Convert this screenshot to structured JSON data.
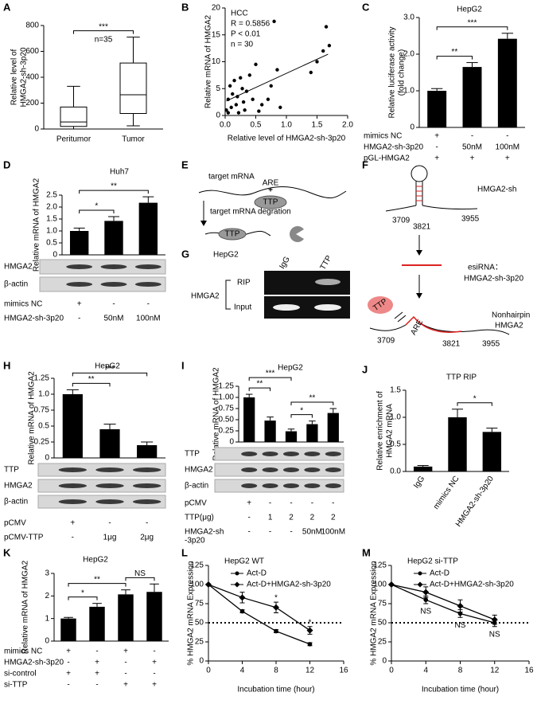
{
  "chart_data": [
    {
      "label": "A",
      "type": "box",
      "ylabel": [
        "Relative level of",
        "HMGA2-sh-3p20"
      ],
      "categories": [
        "Peritumor",
        "Tumor"
      ],
      "whisker_low": [
        0,
        25
      ],
      "q1": [
        20,
        120
      ],
      "median": [
        55,
        265
      ],
      "q3": [
        170,
        510
      ],
      "whisker_high": [
        330,
        710
      ],
      "ylim": [
        0,
        800
      ],
      "yticks": [
        0,
        200,
        400,
        600,
        800
      ],
      "significance": [
        {
          "pair": [
            0,
            1
          ],
          "label": "***"
        }
      ],
      "annotation": "n=35"
    },
    {
      "label": "B",
      "type": "scatter",
      "title": "HCC",
      "annotations": [
        "R = 0.5856",
        "P < 0.01",
        "n = 30"
      ],
      "xlabel": "Relative level of HMGA2-sh-3p20",
      "ylabel": [
        "Relative mRNA of HMGA2"
      ],
      "x": [
        0.02,
        0.05,
        0.05,
        0.08,
        0.1,
        0.12,
        0.15,
        0.18,
        0.2,
        0.22,
        0.25,
        0.28,
        0.3,
        0.32,
        0.35,
        0.4,
        0.45,
        0.5,
        0.55,
        0.6,
        0.7,
        0.75,
        0.8,
        0.85,
        0.9,
        1.4,
        1.5,
        1.6,
        1.65,
        1.7
      ],
      "y": [
        1,
        0.5,
        3,
        5.5,
        1.5,
        4,
        6.5,
        2,
        3.5,
        0.5,
        7,
        5,
        2.5,
        1,
        4.5,
        7.5,
        3,
        9.5,
        0.8,
        2,
        3,
        5.5,
        17.5,
        8.5,
        1.5,
        8,
        10,
        12,
        16.5,
        13
      ],
      "trendline": {
        "x": [
          0.02,
          1.68
        ],
        "y": [
          2.7,
          11.4
        ]
      },
      "xlim": [
        0,
        2
      ],
      "xticks": [
        {
          "value": 0,
          "label": "0.0"
        },
        0.5,
        {
          "value": 1,
          "label": "1.0"
        },
        1.5,
        {
          "value": 2,
          "label": "2.0"
        }
      ],
      "ylim": [
        0,
        20
      ],
      "yticks": [
        0,
        5,
        10,
        15,
        20
      ]
    },
    {
      "label": "C",
      "type": "bar",
      "title": "HepG2",
      "ylabel": [
        "Relative luciferase activity",
        "(fold change)"
      ],
      "values": [
        1,
        1.65,
        2.42
      ],
      "errors": [
        0.06,
        0.12,
        0.15
      ],
      "ylim": [
        0,
        3
      ],
      "yticks": [
        0,
        {
          "value": 1,
          "label": "1.0"
        },
        {
          "value": 2,
          "label": "2.0"
        },
        {
          "value": 3,
          "label": "3.0"
        }
      ],
      "significance": [
        {
          "pair": [
            0,
            1
          ],
          "label": "**"
        },
        {
          "pair": [
            0,
            2
          ],
          "label": "***"
        }
      ],
      "conditions": [
        {
          "label": "mimics NC",
          "cells": [
            "+",
            "-",
            "-"
          ]
        },
        {
          "label": "HMGA2-sh-3p20",
          "cells": [
            "-",
            "50nM",
            "100nM"
          ]
        },
        {
          "label": "pGL-HMGA2",
          "cells": [
            "+",
            "+",
            "+"
          ]
        }
      ]
    },
    {
      "label": "D",
      "type": "bar",
      "title": "Huh7",
      "ylabel": [
        "Relative mRNA of HMGA2"
      ],
      "values": [
        1,
        1.42,
        2.18
      ],
      "errors": [
        0.12,
        0.18,
        0.25
      ],
      "ylim": [
        0,
        2.5
      ],
      "yticks": [
        0,
        0.5,
        {
          "value": 1,
          "label": "1.0"
        },
        1.5,
        {
          "value": 2,
          "label": "2.0"
        },
        2.5
      ],
      "significance": [
        {
          "pair": [
            0,
            1
          ],
          "label": "*"
        },
        {
          "pair": [
            0,
            2
          ],
          "label": "**"
        }
      ],
      "blot": [
        "HMGA2",
        "β-actin"
      ],
      "conditions": [
        {
          "label": "mimics NC",
          "cells": [
            "+",
            "-",
            "-"
          ]
        },
        {
          "label": "HMGA2-sh-3p20",
          "cells": [
            "-",
            "50nM",
            "100nM"
          ]
        }
      ]
    },
    {
      "label": "H",
      "type": "bar",
      "title": "HepG2",
      "ylabel": [
        "Relative mRNA of HMGA2"
      ],
      "values": [
        1,
        0.45,
        0.2
      ],
      "errors": [
        0.07,
        0.08,
        0.05
      ],
      "ylim": [
        0,
        1.25
      ],
      "yticks": [
        0,
        0.25,
        0.5,
        0.75,
        {
          "value": 1,
          "label": "1.0"
        },
        1.25
      ],
      "significance": [
        {
          "pair": [
            0,
            1
          ],
          "label": "**"
        },
        {
          "pair": [
            0,
            2
          ],
          "label": "***"
        }
      ],
      "blot": [
        "TTP",
        "HMGA2",
        "β-actin"
      ],
      "conditions": [
        {
          "label": "pCMV",
          "cells": [
            "+",
            "-",
            "-"
          ]
        },
        {
          "label": "pCMV-TTP",
          "cells": [
            "-",
            "1μg",
            "2μg"
          ]
        }
      ]
    },
    {
      "label": "I",
      "type": "bar",
      "title": "HepG2",
      "ylabel": [
        "Relative mRNA of HMGA2"
      ],
      "values": [
        1,
        0.48,
        0.24,
        0.4,
        0.65
      ],
      "errors": [
        0.07,
        0.08,
        0.05,
        0.07,
        0.1
      ],
      "ylim": [
        0,
        1.25
      ],
      "yticks": [
        0,
        0.25,
        {
          "value": 0.5,
          "label": "0.50"
        },
        0.75,
        {
          "value": 1,
          "label": "1.00"
        },
        1.25
      ],
      "significance": [
        {
          "pair": [
            0,
            1
          ],
          "label": "**"
        },
        {
          "pair": [
            0,
            2
          ],
          "label": "***"
        },
        {
          "pair": [
            2,
            3
          ],
          "label": "*"
        },
        {
          "pair": [
            2,
            4
          ],
          "label": "**"
        }
      ],
      "blot": [
        "TTP",
        "HMGA2",
        "β-actin"
      ],
      "conditions": [
        {
          "label": "pCMV",
          "cells": [
            "+",
            "-",
            "-",
            "-",
            "-"
          ]
        },
        {
          "label": "TTP(μg)",
          "cells": [
            "-",
            "1",
            "2",
            "2",
            "2"
          ]
        },
        {
          "label": [
            "HMGA2-sh",
            "-3p20"
          ],
          "cells": [
            "-",
            "-",
            "-",
            "50nM",
            "100nM"
          ]
        }
      ]
    },
    {
      "label": "J",
      "type": "bar",
      "title": "TTP RIP",
      "ylabel": [
        "Relative enrichment of",
        "HMGA2 mRNA"
      ],
      "categories": [
        "IgG",
        "mimics NC",
        "HMGA2-sh-3p20"
      ],
      "values": [
        0.09,
        1,
        0.73
      ],
      "errors": [
        0.02,
        0.15,
        0.07
      ],
      "ylim": [
        0,
        1.5
      ],
      "yticks": [
        {
          "value": 0,
          "label": "0.0"
        },
        0.5,
        {
          "value": 1,
          "label": "1.0"
        },
        1.5
      ],
      "significance": [
        {
          "pair": [
            1,
            2
          ],
          "label": "*"
        }
      ]
    },
    {
      "label": "K",
      "type": "bar",
      "title": "HepG2",
      "ylabel": [
        "Relative mRNA of HMGA2"
      ],
      "values": [
        1,
        1.52,
        2.07,
        2.18
      ],
      "errors": [
        0.05,
        0.15,
        0.2,
        0.35
      ],
      "ylim": [
        0,
        3
      ],
      "yticks": [
        0,
        1,
        2,
        3
      ],
      "significance": [
        {
          "pair": [
            0,
            1
          ],
          "label": "*"
        },
        {
          "pair": [
            0,
            2
          ],
          "label": "**"
        },
        {
          "pair": [
            2,
            3
          ],
          "label": "NS"
        }
      ],
      "conditions": [
        {
          "label": "mimics NC",
          "cells": [
            "+",
            "-",
            "+",
            "-"
          ]
        },
        {
          "label": "HMGA2-sh-3p20",
          "cells": [
            "-",
            "+",
            "-",
            "+"
          ]
        },
        {
          "label": "si-control",
          "cells": [
            "+",
            "+",
            "-",
            "-"
          ]
        },
        {
          "label": "si-TTP",
          "cells": [
            "-",
            "-",
            "+",
            "+"
          ]
        }
      ]
    },
    {
      "label": "L",
      "type": "line",
      "title": "HepG2  WT",
      "ylabel": [
        "% HMGA2 mRNA Expression"
      ],
      "xlabel": "Incubation time (hour)",
      "x": [
        0,
        4,
        8,
        12
      ],
      "series": [
        {
          "name": "Act-D",
          "marker": "circle",
          "values": [
            100,
            65,
            39,
            22
          ],
          "errors": [
            0,
            2,
            2,
            2
          ]
        },
        {
          "name": "Act-D+HMGA2-sh-3p20",
          "marker": "diamond",
          "values": [
            100,
            83,
            70,
            40
          ],
          "errors": [
            0,
            7,
            7,
            5
          ]
        }
      ],
      "xlim": [
        0,
        16
      ],
      "xticks": [
        0,
        4,
        8,
        12,
        16
      ],
      "ylim": [
        0,
        125
      ],
      "yticks": [
        0,
        25,
        50,
        75,
        100,
        125
      ],
      "reference_line": 50,
      "annotations": [
        {
          "text": "*",
          "x": 8,
          "position": "above"
        },
        {
          "text": "*",
          "x": 12,
          "position": "above"
        }
      ]
    },
    {
      "label": "M",
      "type": "line",
      "title": "HepG2  si-TTP",
      "ylabel": [
        "% HMGA2 mRNA Expression"
      ],
      "xlabel": "Incubation time (hour)",
      "x": [
        0,
        4,
        8,
        12
      ],
      "series": [
        {
          "name": "Act-D",
          "marker": "circle",
          "values": [
            100,
            80,
            62,
            50
          ],
          "errors": [
            0,
            5,
            5,
            5
          ]
        },
        {
          "name": "Act-D+HMGA2-sh-3p20",
          "marker": "diamond",
          "values": [
            100,
            90,
            72,
            54
          ],
          "errors": [
            0,
            7,
            8,
            6
          ]
        }
      ],
      "xlim": [
        0,
        16
      ],
      "xticks": [
        0,
        4,
        8,
        12,
        16
      ],
      "ylim": [
        0,
        125
      ],
      "yticks": [
        0,
        25,
        50,
        75,
        100,
        125
      ],
      "reference_line": 50,
      "annotations": [
        {
          "text": "NS",
          "x": 4,
          "position": "below"
        },
        {
          "text": "NS",
          "x": 8,
          "position": "below"
        },
        {
          "text": "NS",
          "x": 12,
          "position": "below"
        }
      ]
    }
  ],
  "diagrams": {
    "E": {
      "label": "E",
      "target": "target mRNA",
      "are": "ARE",
      "plus": "+",
      "ttp_top": "TTP",
      "step": "target mRNA degration",
      "ttp_bottom": "TTP"
    },
    "G": {
      "label": "G",
      "cell": "HepG2",
      "lanes": [
        "IgG",
        "TTP"
      ],
      "gene": "HMGA2",
      "rows": [
        "RIP",
        "Input"
      ]
    },
    "F": {
      "label": "F",
      "hairpin": "HMGA2-sh",
      "top_positions": [
        "3709",
        "3821",
        "3955"
      ],
      "esirna": [
        "esiRNA：",
        "HMGA2-sh-3p20"
      ],
      "ttp": "TTP",
      "are": "ARE",
      "bottom_positions": [
        "3709",
        "3821",
        "3955"
      ],
      "nonhairpin": [
        "Nonhairpin",
        "HMGA2"
      ]
    }
  }
}
